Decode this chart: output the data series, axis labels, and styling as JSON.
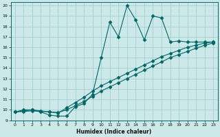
{
  "xlabel": "Humidex (Indice chaleur)",
  "bg_color": "#cce8e8",
  "grid_color": "#99cccc",
  "line_color": "#006666",
  "xlim": [
    -0.5,
    23.5
  ],
  "ylim": [
    9,
    20.3
  ],
  "xticks": [
    0,
    1,
    2,
    3,
    4,
    5,
    6,
    7,
    8,
    9,
    10,
    11,
    12,
    13,
    14,
    15,
    16,
    17,
    18,
    19,
    20,
    21,
    22,
    23
  ],
  "yticks": [
    9,
    10,
    11,
    12,
    13,
    14,
    15,
    16,
    17,
    18,
    19,
    20
  ],
  "series1_x": [
    0,
    1,
    2,
    3,
    4,
    5,
    6,
    7,
    8,
    9,
    10,
    11,
    12,
    13,
    14,
    15,
    16,
    17,
    18,
    19,
    20,
    21,
    22,
    23
  ],
  "series1_y": [
    9.8,
    10.0,
    10.0,
    9.8,
    9.5,
    9.4,
    9.4,
    10.3,
    10.6,
    11.5,
    15.0,
    18.4,
    17.0,
    20.0,
    18.6,
    16.7,
    19.0,
    18.8,
    16.5,
    16.6,
    16.5,
    16.5,
    16.5,
    16.5
  ],
  "series2_x": [
    0,
    1,
    2,
    3,
    4,
    5,
    6,
    7,
    8,
    9,
    10,
    11,
    12,
    13,
    14,
    15,
    16,
    17,
    18,
    19,
    20,
    21,
    22,
    23
  ],
  "series2_y": [
    9.8,
    9.9,
    10.0,
    9.9,
    9.8,
    9.7,
    10.2,
    10.7,
    11.2,
    11.8,
    12.3,
    12.7,
    13.1,
    13.5,
    13.9,
    14.3,
    14.7,
    15.1,
    15.4,
    15.7,
    16.0,
    16.2,
    16.4,
    16.5
  ],
  "series3_x": [
    0,
    1,
    2,
    3,
    4,
    5,
    6,
    7,
    8,
    9,
    10,
    11,
    12,
    13,
    14,
    15,
    16,
    17,
    18,
    19,
    20,
    21,
    22,
    23
  ],
  "series3_y": [
    9.8,
    9.85,
    9.9,
    9.85,
    9.8,
    9.75,
    10.0,
    10.4,
    10.8,
    11.3,
    11.8,
    12.2,
    12.6,
    13.0,
    13.4,
    13.8,
    14.2,
    14.6,
    15.0,
    15.3,
    15.6,
    15.9,
    16.2,
    16.4
  ]
}
